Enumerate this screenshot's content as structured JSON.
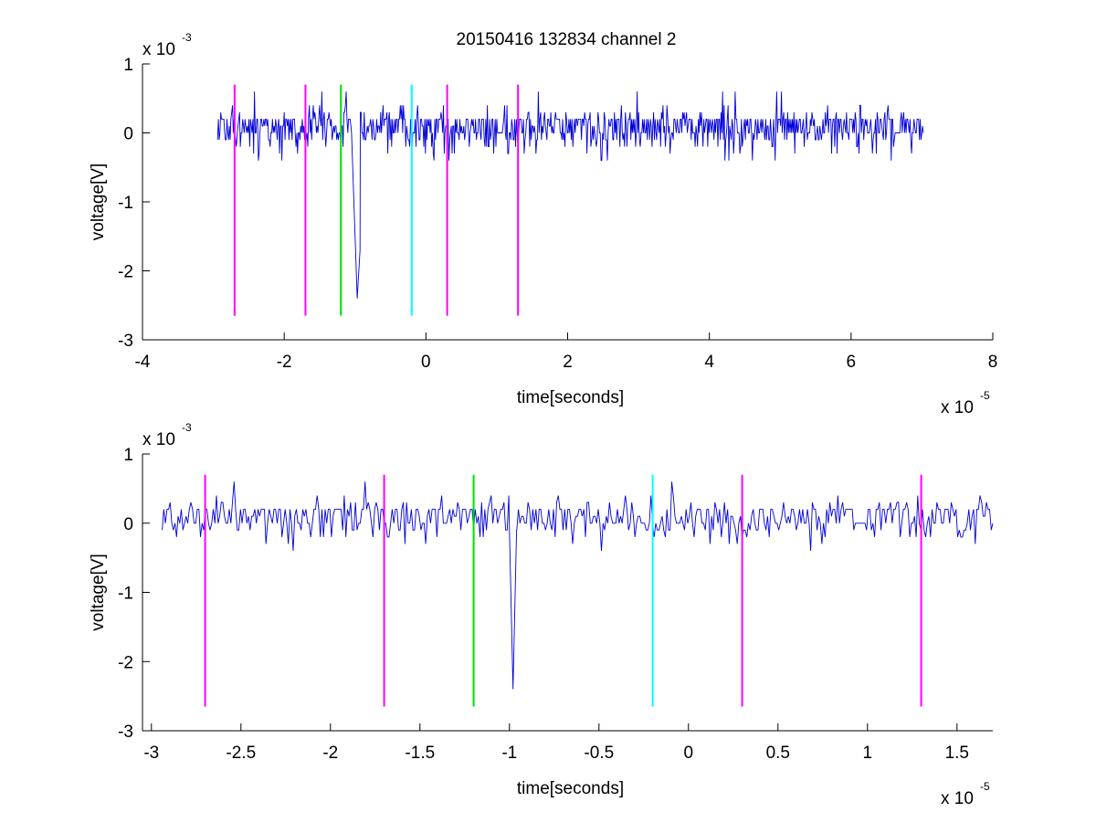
{
  "title": "20150416 132834 channel 2",
  "colors": {
    "signal": "#0000d8",
    "magenta_marker": "#ff00ff",
    "green_marker": "#00e000",
    "cyan_marker": "#00ffff",
    "axis": "#000000",
    "background": "#ffffff"
  },
  "chart_data": [
    {
      "type": "line",
      "title": "20150416 132834 channel 2",
      "xlabel": "time[seconds]",
      "ylabel": "voltage[V]",
      "x_multiplier": "x 10",
      "x_multiplier_exp": "-5",
      "y_multiplier": "x 10",
      "y_multiplier_exp": "-3",
      "xlim": [
        -4,
        8
      ],
      "ylim": [
        -3,
        1
      ],
      "xticks": [
        -4,
        -2,
        0,
        2,
        4,
        6,
        8
      ],
      "xtick_labels": [
        "-4",
        "-2",
        "0",
        "2",
        "4",
        "6",
        "8"
      ],
      "yticks": [
        -3,
        -2,
        -1,
        0,
        1
      ],
      "ytick_labels": [
        "-3",
        "-2",
        "-1",
        "0",
        "1"
      ],
      "grid": false,
      "signal": {
        "x_range": [
          -2.94,
          7.02
        ],
        "baseline_levels": [
          0,
          0.2
        ],
        "noise_extremes": [
          -0.4,
          0.6
        ],
        "spike": {
          "x": [
            -1.05,
            -0.97,
            -0.93
          ],
          "y": [
            0,
            -2.4,
            -1.7
          ]
        }
      },
      "markers": {
        "y_range": [
          -2.65,
          0.7
        ],
        "magenta": [
          -2.7,
          -1.7,
          0.3,
          1.3
        ],
        "green": [
          -1.2
        ],
        "cyan": [
          -0.2
        ]
      }
    },
    {
      "type": "line",
      "title": "",
      "xlabel": "time[seconds]",
      "ylabel": "voltage[V]",
      "x_multiplier": "x 10",
      "x_multiplier_exp": "-5",
      "y_multiplier": "x 10",
      "y_multiplier_exp": "-3",
      "xlim": [
        -3.05,
        1.7
      ],
      "ylim": [
        -3,
        1
      ],
      "xticks": [
        -3,
        -2.5,
        -2,
        -1.5,
        -1,
        -0.5,
        0,
        0.5,
        1,
        1.5
      ],
      "xtick_labels": [
        "-3",
        "-2.5",
        "-2",
        "-1.5",
        "-1",
        "-0.5",
        "0",
        "0.5",
        "1",
        "1.5"
      ],
      "yticks": [
        -3,
        -2,
        -1,
        0,
        1
      ],
      "ytick_labels": [
        "-3",
        "-2",
        "-1",
        "0",
        "1"
      ],
      "grid": false,
      "signal": {
        "x_range": [
          -2.94,
          1.7
        ],
        "baseline_levels": [
          0,
          0.2
        ],
        "noise_extremes": [
          -0.4,
          0.6
        ],
        "spike": {
          "x": [
            -1.0,
            -0.98,
            -0.96
          ],
          "y": [
            -0.1,
            -2.4,
            -0.1
          ]
        }
      },
      "markers": {
        "y_range": [
          -2.65,
          0.7
        ],
        "magenta": [
          -2.7,
          -1.7,
          0.3,
          1.3
        ],
        "green": [
          -1.2
        ],
        "cyan": [
          -0.2
        ]
      }
    }
  ]
}
